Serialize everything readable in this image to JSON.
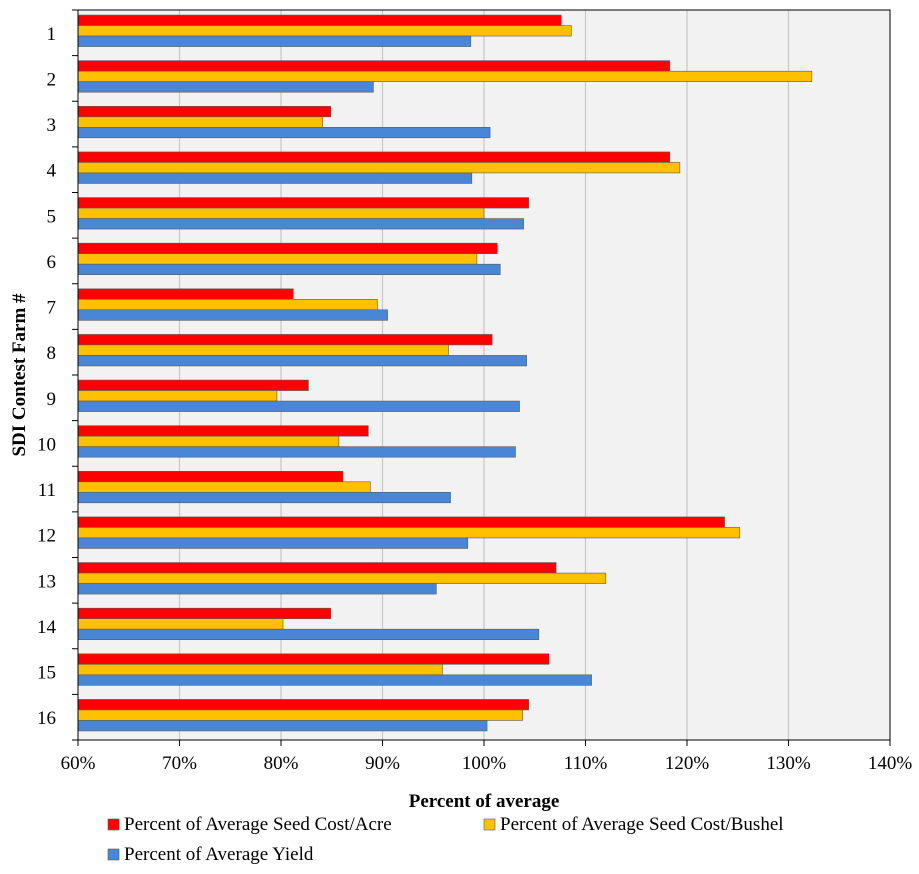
{
  "chart_data": {
    "type": "bar",
    "orientation": "horizontal",
    "title": "",
    "xlabel": "Percent of average",
    "ylabel": "SDI Contest Farm #",
    "xlim": [
      60,
      140
    ],
    "x_ticks": [
      "60%",
      "70%",
      "80%",
      "90%",
      "100%",
      "110%",
      "120%",
      "130%",
      "140%"
    ],
    "x_tick_values": [
      60,
      70,
      80,
      90,
      100,
      110,
      120,
      130,
      140
    ],
    "grid": "vertical",
    "legend_position": "bottom",
    "categories": [
      "1",
      "2",
      "3",
      "4",
      "5",
      "6",
      "7",
      "8",
      "9",
      "10",
      "11",
      "12",
      "13",
      "14",
      "15",
      "16"
    ],
    "series": [
      {
        "name": "Percent of Average Seed Cost/Acre",
        "color": "#ff0000",
        "values": [
          107.6,
          118.3,
          84.9,
          118.3,
          104.4,
          101.3,
          81.2,
          100.8,
          82.7,
          88.6,
          86.1,
          123.7,
          107.1,
          84.9,
          106.4,
          104.4
        ]
      },
      {
        "name": "Percent of Average Seed Cost/Bushel",
        "color": "#ffc000",
        "values": [
          108.6,
          132.3,
          84.1,
          119.3,
          100.0,
          99.3,
          89.5,
          96.5,
          79.6,
          85.7,
          88.8,
          125.2,
          112.0,
          80.2,
          95.9,
          103.8
        ]
      },
      {
        "name": "Percent of Average Yield",
        "color": "#4a86d6",
        "values": [
          98.7,
          89.1,
          100.6,
          98.8,
          103.9,
          101.6,
          90.5,
          104.2,
          103.5,
          103.1,
          96.7,
          98.4,
          95.3,
          105.4,
          110.6,
          100.3
        ]
      }
    ]
  }
}
